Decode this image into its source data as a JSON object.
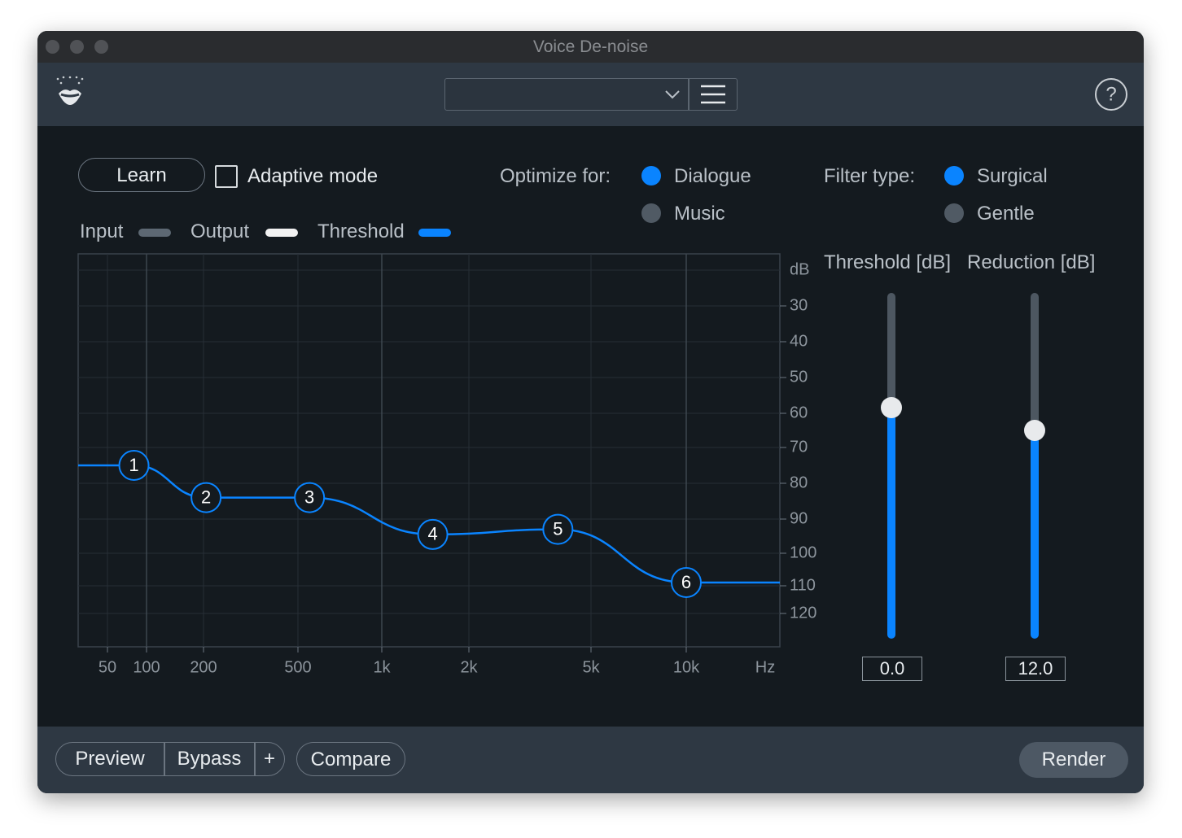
{
  "window": {
    "title": "Voice De-noise"
  },
  "controls": {
    "learn": "Learn",
    "adaptive_mode": "Adaptive mode",
    "optimize_label": "Optimize for:",
    "optimize_options": [
      "Dialogue",
      "Music"
    ],
    "filter_label": "Filter type:",
    "filter_options": [
      "Surgical",
      "Gentle"
    ]
  },
  "legend": [
    {
      "name": "Input",
      "color": "#5d6873"
    },
    {
      "name": "Output",
      "color": "#f2f2f2"
    }
  ],
  "chart_data": {
    "type": "line",
    "x": [
      80,
      205,
      550,
      1500,
      3900,
      10000
    ],
    "series": [
      {
        "name": "Threshold",
        "color": "#0a84ff",
        "values": [
          75,
          84,
          84,
          94.5,
          93,
          109
        ]
      }
    ],
    "point_labels": [
      "1",
      "2",
      "3",
      "4",
      "5",
      "6"
    ],
    "log_x": true,
    "grid": true,
    "xlim": [
      30,
      20000
    ],
    "ylim": [
      15,
      130
    ],
    "xticks": [
      50,
      100,
      200,
      500,
      {
        "value": 1000,
        "label": "1k"
      },
      {
        "value": 2000,
        "label": "2k"
      },
      {
        "value": 5000,
        "label": "5k"
      },
      {
        "value": 10000,
        "label": "10k"
      }
    ],
    "yticks": [
      30,
      40,
      50,
      60,
      70,
      80,
      90,
      100,
      110,
      120
    ],
    "x_unit": "Hz",
    "y_unit": "dB"
  },
  "sliders": [
    {
      "label": "Threshold [dB]",
      "value": "0.0"
    },
    {
      "label": "Reduction [dB]",
      "value": "12.0"
    }
  ],
  "footer": {
    "buttons": [
      "Preview",
      "Bypass",
      "+",
      "Compare"
    ],
    "render": "Render"
  }
}
